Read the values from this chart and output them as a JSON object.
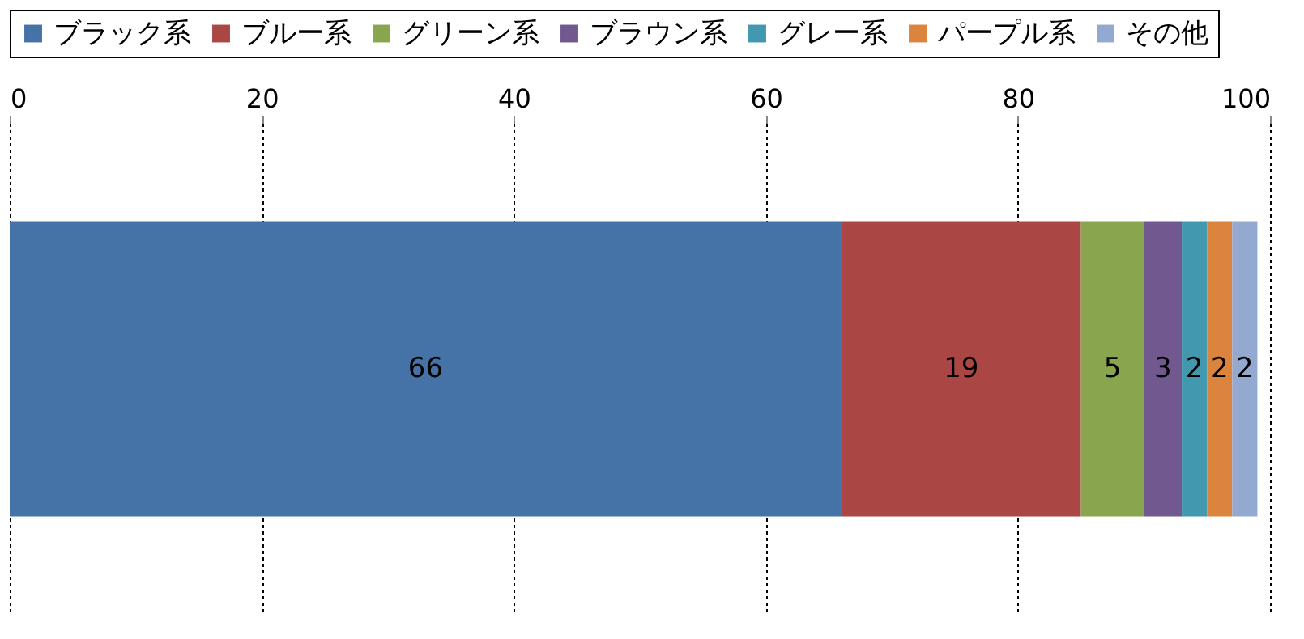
{
  "chart_data": {
    "type": "bar",
    "orientation": "horizontal",
    "stacked": true,
    "categories": [
      null
    ],
    "series": [
      {
        "name": "ブラック系",
        "color": "#4572a7",
        "values": [
          66
        ]
      },
      {
        "name": "ブルー系",
        "color": "#aa4643",
        "values": [
          19
        ]
      },
      {
        "name": "グリーン系",
        "color": "#89a54e",
        "values": [
          5
        ]
      },
      {
        "name": "ブラウン系",
        "color": "#71588f",
        "values": [
          3
        ]
      },
      {
        "name": "グレー系",
        "color": "#4198af",
        "values": [
          2
        ]
      },
      {
        "name": "パープル系",
        "color": "#db843d",
        "values": [
          2
        ]
      },
      {
        "name": "その他",
        "color": "#93a9cf",
        "values": [
          2
        ]
      }
    ],
    "xlim": [
      0,
      100
    ],
    "xticks": [
      0,
      20,
      40,
      60,
      80,
      100
    ],
    "grid": "x",
    "legend": "top",
    "tick_labels": "x",
    "data_labels": true
  }
}
